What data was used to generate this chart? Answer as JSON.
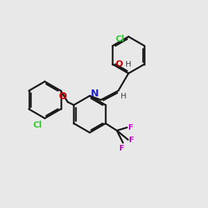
{
  "bg_color": "#e8e8e8",
  "bond_color": "#1a1a1a",
  "cl_color": "#33cc33",
  "oh_color": "#cc0000",
  "n_color": "#2222cc",
  "o_color": "#cc0000",
  "h_color": "#333333",
  "f_color": "#cc00cc",
  "bond_width": 1.8,
  "doffset": 0.07,
  "fig_size": [
    3.0,
    3.0
  ],
  "dpi": 100,
  "xlim": [
    0,
    10
  ],
  "ylim": [
    0,
    10
  ]
}
